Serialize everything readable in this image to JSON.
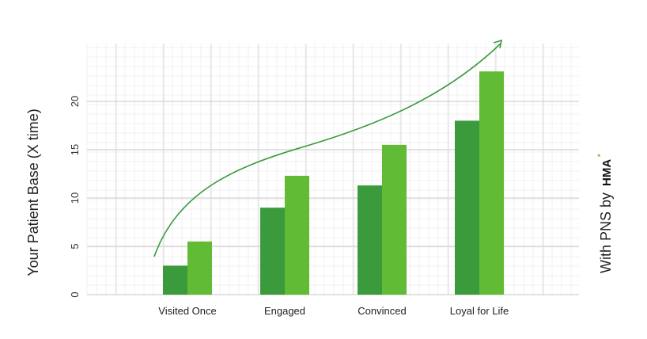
{
  "chart_data": {
    "type": "bar",
    "categories": [
      "Visited Once",
      "Engaged",
      "Convinced",
      "Loyal for Life"
    ],
    "series": [
      {
        "values": [
          3,
          9,
          11.3,
          18
        ]
      },
      {
        "values": [
          5.5,
          12.3,
          15.5,
          23.1
        ]
      }
    ],
    "ylabel": "Your Patient Base (X time)",
    "yticks": [
      0,
      5,
      10,
      15,
      20
    ],
    "ylim": [
      0,
      25
    ],
    "grid": true,
    "colors": [
      "#3a9a3c",
      "#62bb35"
    ],
    "annotation": "growth-arrow",
    "arrow_color": "#3a9a3c",
    "side_label": "With PNS by",
    "logo_text": "HMA",
    "logo_mark": "*"
  }
}
